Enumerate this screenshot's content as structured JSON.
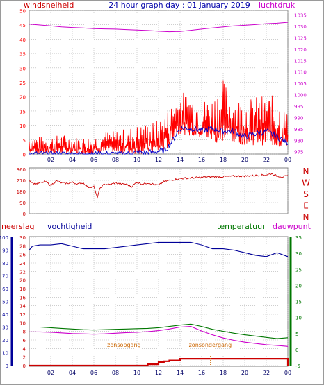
{
  "header": {
    "left_label": "windsnelheid",
    "title": "24 hour graph day : 01 January 2019",
    "right_label": "luchtdruk"
  },
  "colors": {
    "wind": "#ff0000",
    "gust": "#0000cc",
    "pressure": "#cc00cc",
    "direction": "#cc0000",
    "humidity": "#000099",
    "temperature": "#007700",
    "dewpoint": "#cc00cc",
    "rain": "#cc0000",
    "solar": "#cc6600",
    "grid": "#b0b0b0"
  },
  "bottom_labels": {
    "rain": "neerslag",
    "humidity": "vochtigheid",
    "temperature": "temperatuur",
    "dewpoint": "dauwpunt",
    "sunrise": "zonsopgang",
    "sunset": "zonsondergang"
  },
  "compass": [
    "N",
    "W",
    "S",
    "E",
    "N"
  ],
  "chart_data": [
    {
      "type": "line",
      "name": "wind-pressure",
      "x_ticks": [
        "02",
        "04",
        "06",
        "08",
        "10",
        "12",
        "14",
        "16",
        "18",
        "20",
        "22",
        "00"
      ],
      "x_range_hours": [
        0,
        24
      ],
      "y_left_ticks": [
        "0",
        "5",
        "10",
        "15",
        "20",
        "25",
        "30",
        "35",
        "40",
        "45",
        "50"
      ],
      "y_left_range": [
        0,
        50
      ],
      "y_right_ticks": [
        "975",
        "980",
        "985",
        "990",
        "995",
        "1000",
        "1005",
        "1010",
        "1015",
        "1020",
        "1025",
        "1030",
        "1035"
      ],
      "y_right_range": [
        974,
        1037
      ],
      "series": [
        {
          "name": "windsnelheid",
          "axis": "left",
          "note_band": "spiky band between low and high envelope",
          "x": [
            0,
            1,
            2,
            3,
            4,
            5,
            6,
            7,
            8,
            9,
            10,
            11,
            12,
            12.5,
            13,
            13.5,
            14,
            15,
            16,
            17,
            18,
            19,
            20,
            21,
            22,
            23,
            24
          ],
          "low": [
            0,
            0,
            0,
            0,
            0,
            0,
            0,
            0,
            0,
            0,
            0,
            0,
            0,
            1,
            2,
            6,
            7,
            6,
            5,
            4,
            4,
            4,
            3,
            3,
            3,
            2,
            2
          ],
          "high": [
            7,
            6,
            6,
            7,
            6,
            6,
            6,
            8,
            8,
            9,
            10,
            11,
            12,
            14,
            16,
            20,
            22,
            21,
            19,
            20,
            26,
            20,
            19,
            20,
            21,
            20,
            14
          ]
        },
        {
          "name": "gust",
          "axis": "left",
          "x": [
            0,
            1,
            2,
            3,
            4,
            5,
            6,
            7,
            8,
            9,
            10,
            11,
            12,
            12.5,
            13,
            13.5,
            14,
            15,
            16,
            17,
            18,
            19,
            20,
            21,
            22,
            23,
            24
          ],
          "values": [
            0,
            0,
            0,
            0,
            0,
            0,
            0,
            0,
            0,
            0,
            0.5,
            0.5,
            1,
            1,
            3,
            6,
            9,
            9,
            8,
            9,
            8,
            8,
            6,
            7,
            8,
            6,
            4
          ]
        },
        {
          "name": "luchtdruk",
          "axis": "right",
          "x": [
            0,
            1,
            2,
            3,
            4,
            5,
            6,
            7,
            8,
            9,
            10,
            11,
            12,
            13,
            14,
            15,
            16,
            17,
            18,
            19,
            20,
            21,
            22,
            23,
            24
          ],
          "values": [
            1031,
            1030.6,
            1030.2,
            1029.8,
            1029.5,
            1029.3,
            1029,
            1028.9,
            1028.8,
            1028.6,
            1028.4,
            1028.2,
            1027.9,
            1027.7,
            1027.8,
            1028.3,
            1028.8,
            1029.3,
            1029.8,
            1030.2,
            1030.5,
            1030.8,
            1031.2,
            1031.4,
            1031.8
          ]
        }
      ]
    },
    {
      "type": "line",
      "name": "wind-direction",
      "x_range_hours": [
        0,
        24
      ],
      "y_ticks": [
        "0",
        "90",
        "180",
        "270",
        "360"
      ],
      "y_range": [
        0,
        360
      ],
      "series": [
        {
          "name": "direction",
          "x": [
            0,
            0.5,
            1,
            1.5,
            2,
            2.5,
            3,
            3.5,
            4,
            4.5,
            5,
            5.5,
            6,
            6.3,
            6.6,
            7,
            7.5,
            8,
            8.5,
            9,
            9.5,
            10,
            10.5,
            11,
            11.5,
            12,
            12.5,
            13,
            14,
            15,
            16,
            17,
            18,
            19,
            20,
            21,
            22,
            22.5,
            23,
            23.5,
            24
          ],
          "values": [
            270,
            240,
            250,
            260,
            230,
            265,
            250,
            245,
            255,
            240,
            250,
            215,
            220,
            130,
            210,
            240,
            235,
            250,
            240,
            240,
            220,
            255,
            240,
            250,
            240,
            230,
            260,
            270,
            285,
            290,
            295,
            300,
            300,
            305,
            305,
            310,
            315,
            325,
            305,
            300,
            305
          ]
        }
      ]
    },
    {
      "type": "line",
      "name": "rain-humidity-temperature",
      "x_ticks": [
        "02",
        "04",
        "06",
        "08",
        "10",
        "12",
        "14",
        "16",
        "18",
        "20",
        "22",
        "00"
      ],
      "x_range_hours": [
        0,
        24
      ],
      "y_rain_ticks": [
        "0",
        "2",
        "4",
        "6",
        "8",
        "10",
        "12",
        "14",
        "16",
        "18",
        "20",
        "22",
        "24",
        "26",
        "28",
        "30"
      ],
      "y_rain_range": [
        0,
        30
      ],
      "y_humidity_ticks": [
        "0",
        "10",
        "20",
        "30",
        "40",
        "50",
        "60",
        "70",
        "80",
        "90",
        "100"
      ],
      "y_humidity_range": [
        0,
        100
      ],
      "y_temperature_ticks": [
        "-5",
        "0",
        "5",
        "10",
        "15",
        "20",
        "25",
        "30",
        "35"
      ],
      "y_temperature_range": [
        -5,
        35
      ],
      "sunrise_hour": 8.8,
      "sunset_hour": 16.8,
      "series": [
        {
          "name": "vochtigheid",
          "x": [
            0,
            0.3,
            1,
            2,
            3,
            4,
            5,
            6,
            7,
            8,
            9,
            10,
            11,
            12,
            13,
            14,
            15,
            16,
            17,
            18,
            19,
            20,
            21,
            22,
            23,
            24
          ],
          "values": [
            90,
            93,
            94,
            94,
            95,
            93,
            91,
            91,
            91,
            92,
            93,
            94,
            95,
            96,
            96,
            96,
            96,
            94,
            91,
            91,
            90,
            88,
            86,
            85,
            88,
            85
          ]
        },
        {
          "name": "temperatuur",
          "x": [
            0,
            1,
            2,
            3,
            4,
            5,
            6,
            7,
            8,
            9,
            10,
            11,
            12,
            13,
            14,
            15,
            16,
            17,
            18,
            19,
            20,
            21,
            22,
            23,
            24
          ],
          "values": [
            7,
            7,
            6.8,
            6.6,
            6.4,
            6.2,
            6.1,
            6.2,
            6.3,
            6.4,
            6.5,
            6.6,
            6.8,
            7.2,
            7.6,
            7.9,
            7.2,
            6.3,
            5.7,
            5.1,
            4.6,
            4.2,
            3.8,
            3.4,
            3.7
          ]
        },
        {
          "name": "dauwpunt",
          "x": [
            0,
            1,
            2,
            3,
            4,
            5,
            6,
            7,
            8,
            9,
            10,
            11,
            12,
            13,
            14,
            15,
            16,
            17,
            18,
            19,
            20,
            21,
            22,
            23,
            24
          ],
          "values": [
            5.5,
            5.5,
            5.4,
            5.2,
            5,
            4.9,
            4.8,
            4.9,
            5.1,
            5.3,
            5.4,
            5.6,
            5.9,
            6.4,
            7,
            7.2,
            5.8,
            4.6,
            3.6,
            2.9,
            2.3,
            1.9,
            1.5,
            1.3,
            1
          ]
        },
        {
          "name": "neerslag",
          "x": [
            0,
            10.5,
            11,
            12,
            12.5,
            13,
            14,
            15,
            16,
            17,
            18,
            19,
            20,
            21,
            22,
            23,
            23.5,
            24
          ],
          "values": [
            0,
            0,
            0.3,
            0.8,
            1,
            1.2,
            1.6,
            1.6,
            1.6,
            1.6,
            1.6,
            1.6,
            1.6,
            1.6,
            1.6,
            1.6,
            1.6,
            0
          ]
        }
      ]
    }
  ]
}
